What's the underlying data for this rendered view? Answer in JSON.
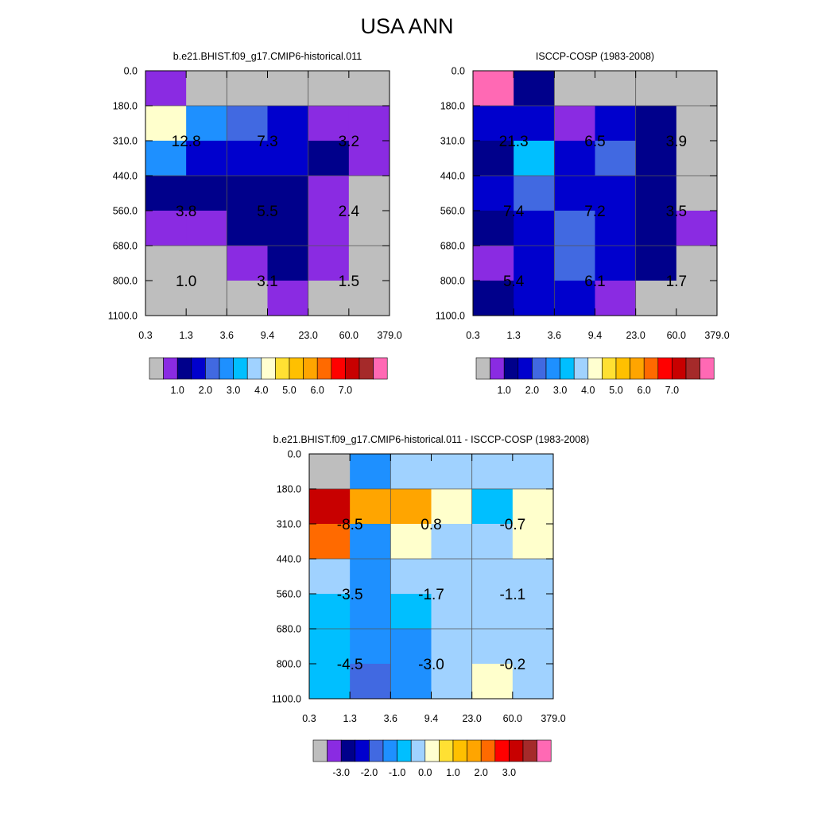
{
  "page": {
    "title": "USA ANN"
  },
  "chart_data": [
    {
      "type": "heatmap",
      "title": "b.e21.BHIST.f09_g17.CMIP6-historical.011",
      "x_tick_labels": [
        "0.3",
        "1.3",
        "3.6",
        "9.4",
        "23.0",
        "60.0",
        "379.0"
      ],
      "y_tick_labels": [
        "0.0",
        "180.0",
        "310.0",
        "440.0",
        "560.0",
        "680.0",
        "800.0",
        "1100.0"
      ],
      "cells": [
        [
          "purple",
          "gray",
          "gray",
          "gray",
          "gray",
          "gray"
        ],
        [
          "lightyellow",
          "dodgerblue",
          "royalblue",
          "mediumblue",
          "blueviolet",
          "blueviolet"
        ],
        [
          "dodgerblue",
          "mediumblue",
          "mediumblue",
          "mediumblue",
          "navy",
          "blueviolet"
        ],
        [
          "navy",
          "navy",
          "navy",
          "navy",
          "blueviolet",
          "gray"
        ],
        [
          "blueviolet",
          "blueviolet",
          "navy",
          "navy",
          "blueviolet",
          "gray"
        ],
        [
          "gray",
          "gray",
          "blueviolet",
          "navy",
          "blueviolet",
          "gray"
        ],
        [
          "gray",
          "gray",
          "gray",
          "blueviolet",
          "gray",
          "gray"
        ]
      ],
      "box_values": [
        [
          "12.8",
          "7.3",
          "3.2"
        ],
        [
          "3.8",
          "5.5",
          "2.4"
        ],
        [
          "1.0",
          "3.1",
          "1.5"
        ]
      ],
      "colorbar": {
        "colors": [
          "#bebebe",
          "#8a2be2",
          "#00008b",
          "#0000cd",
          "#4169e1",
          "#1e90ff",
          "#00bfff",
          "#a0d2ff",
          "#ffffd0",
          "#ffe033",
          "#ffc000",
          "#ffa500",
          "#ff6a00",
          "#ff0000",
          "#c80000",
          "#a52a2a",
          "#ff69b4"
        ],
        "labels": [
          "1.0",
          "2.0",
          "3.0",
          "4.0",
          "5.0",
          "6.0",
          "7.0"
        ]
      }
    },
    {
      "type": "heatmap",
      "title": "ISCCP-COSP (1983-2008)",
      "x_tick_labels": [
        "0.3",
        "1.3",
        "3.6",
        "9.4",
        "23.0",
        "60.0",
        "379.0"
      ],
      "y_tick_labels": [
        "0.0",
        "180.0",
        "310.0",
        "440.0",
        "560.0",
        "680.0",
        "800.0",
        "1100.0"
      ],
      "cells": [
        [
          "hotpink",
          "navy",
          "gray",
          "gray",
          "gray",
          "gray"
        ],
        [
          "mediumblue",
          "mediumblue",
          "blueviolet",
          "mediumblue",
          "navy",
          "gray"
        ],
        [
          "navy",
          "deepskyblue",
          "mediumblue",
          "royalblue",
          "navy",
          "gray"
        ],
        [
          "mediumblue",
          "royalblue",
          "mediumblue",
          "mediumblue",
          "navy",
          "gray"
        ],
        [
          "navy",
          "mediumblue",
          "royalblue",
          "mediumblue",
          "navy",
          "blueviolet"
        ],
        [
          "blueviolet",
          "mediumblue",
          "royalblue",
          "mediumblue",
          "navy",
          "gray"
        ],
        [
          "navy",
          "mediumblue",
          "mediumblue",
          "blueviolet",
          "gray",
          "gray"
        ]
      ],
      "box_values": [
        [
          "21.3",
          "6.5",
          "3.9"
        ],
        [
          "7.4",
          "7.2",
          "3.5"
        ],
        [
          "5.4",
          "6.1",
          "1.7"
        ]
      ],
      "colorbar": {
        "colors": [
          "#bebebe",
          "#8a2be2",
          "#00008b",
          "#0000cd",
          "#4169e1",
          "#1e90ff",
          "#00bfff",
          "#a0d2ff",
          "#ffffd0",
          "#ffe033",
          "#ffc000",
          "#ffa500",
          "#ff6a00",
          "#ff0000",
          "#c80000",
          "#a52a2a",
          "#ff69b4"
        ],
        "labels": [
          "1.0",
          "2.0",
          "3.0",
          "4.0",
          "5.0",
          "6.0",
          "7.0"
        ]
      }
    },
    {
      "type": "heatmap",
      "title": "b.e21.BHIST.f09_g17.CMIP6-historical.011 - ISCCP-COSP (1983-2008)",
      "x_tick_labels": [
        "0.3",
        "1.3",
        "3.6",
        "9.4",
        "23.0",
        "60.0",
        "379.0"
      ],
      "y_tick_labels": [
        "0.0",
        "180.0",
        "310.0",
        "440.0",
        "560.0",
        "680.0",
        "800.0",
        "1100.0"
      ],
      "cells": [
        [
          "gray",
          "dodgerblue",
          "lightblue",
          "lightblue",
          "lightblue",
          "lightblue"
        ],
        [
          "darkred",
          "orange",
          "orange",
          "lightyellow",
          "deepskyblue",
          "lightyellow"
        ],
        [
          "orangered",
          "dodgerblue",
          "lightyellow",
          "lightblue",
          "lightblue",
          "lightyellow"
        ],
        [
          "lightblue",
          "dodgerblue",
          "lightblue",
          "lightblue",
          "lightblue",
          "lightblue"
        ],
        [
          "deepskyblue",
          "dodgerblue",
          "deepskyblue",
          "lightblue",
          "lightblue",
          "lightblue"
        ],
        [
          "deepskyblue",
          "dodgerblue",
          "dodgerblue",
          "lightblue",
          "lightblue",
          "lightblue"
        ],
        [
          "deepskyblue",
          "royalblue",
          "dodgerblue",
          "lightblue",
          "lightyellow",
          "lightblue"
        ]
      ],
      "box_values": [
        [
          "-8.5",
          "0.8",
          "-0.7"
        ],
        [
          "-3.5",
          "-1.7",
          "-1.1"
        ],
        [
          "-4.5",
          "-3.0",
          "-0.2"
        ]
      ],
      "colorbar": {
        "colors": [
          "#bebebe",
          "#8a2be2",
          "#00008b",
          "#0000cd",
          "#4169e1",
          "#1e90ff",
          "#00bfff",
          "#a0d2ff",
          "#ffffd0",
          "#ffe033",
          "#ffc000",
          "#ffa500",
          "#ff6a00",
          "#ff0000",
          "#c80000",
          "#a52a2a",
          "#ff69b4"
        ],
        "labels": [
          "-3.0",
          "-2.0",
          "-1.0",
          "0.0",
          "1.0",
          "2.0",
          "3.0"
        ]
      }
    }
  ],
  "palette": {
    "gray": "#bebebe",
    "purple": "#8a2be2",
    "blueviolet": "#8a2be2",
    "navy": "#00008b",
    "mediumblue": "#0000cd",
    "royalblue": "#4169e1",
    "dodgerblue": "#1e90ff",
    "deepskyblue": "#00bfff",
    "lightblue": "#a0d2ff",
    "lightyellow": "#ffffcc",
    "orange": "#ffa500",
    "orangered": "#ff6a00",
    "darkred": "#c80000",
    "hotpink": "#ff69b4"
  }
}
